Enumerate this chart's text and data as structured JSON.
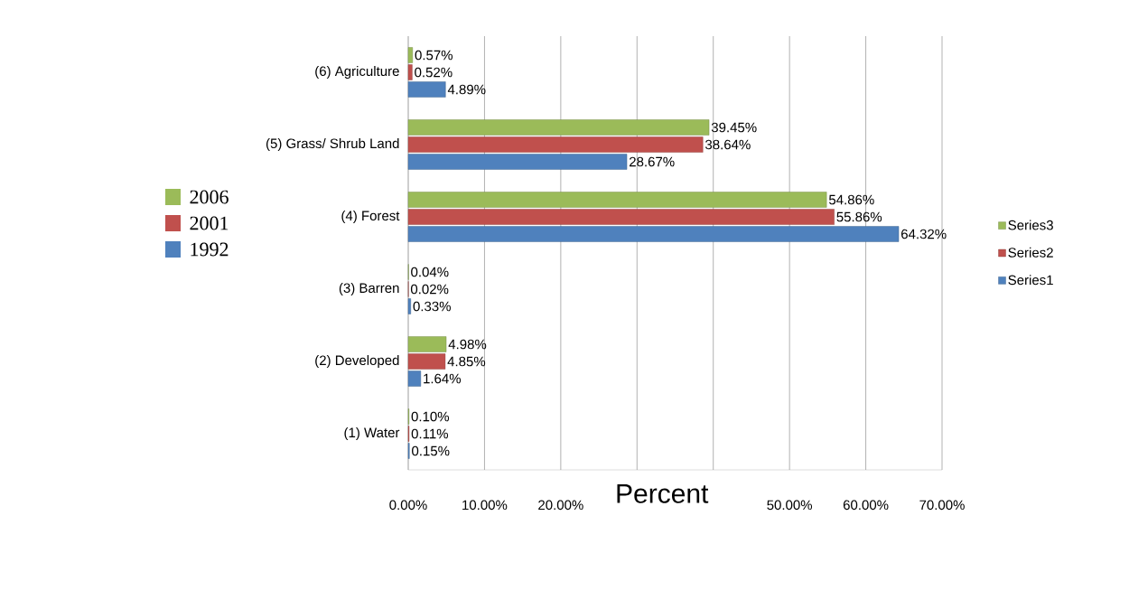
{
  "chart_data": {
    "type": "bar",
    "orientation": "horizontal",
    "xlabel": "Percent",
    "categories": [
      "(6) Agriculture",
      "(5) Grass/ Shrub Land",
      "(4) Forest",
      "(3) Barren",
      "(2) Developed",
      "(1) Water"
    ],
    "series": [
      {
        "name": "Series1",
        "color": "#4f81bd",
        "values": [
          4.89,
          28.67,
          64.32,
          0.33,
          1.64,
          0.15
        ],
        "value_labels": [
          "4.89%",
          "28.67%",
          "64.32%",
          "0.33%",
          "1.64%",
          "0.15%"
        ]
      },
      {
        "name": "Series2",
        "color": "#c0504d",
        "values": [
          0.52,
          38.64,
          55.86,
          0.02,
          4.85,
          0.11
        ],
        "value_labels": [
          "0.52%",
          "38.64%",
          "55.86%",
          "0.02%",
          "4.85%",
          "0.11%"
        ]
      },
      {
        "name": "Series3",
        "color": "#9bbb59",
        "values": [
          0.57,
          39.45,
          54.86,
          0.04,
          4.98,
          0.1
        ],
        "value_labels": [
          "0.57%",
          "39.45%",
          "54.86%",
          "0.04%",
          "4.98%",
          "0.10%"
        ]
      }
    ],
    "xlim": [
      0,
      70
    ],
    "xticks": [
      {
        "value": 0,
        "label": "0.00%"
      },
      {
        "value": 10,
        "label": "10.00%"
      },
      {
        "value": 20,
        "label": "20.00%"
      },
      {
        "value": 30,
        "label": null
      },
      {
        "value": 40,
        "label": null
      },
      {
        "value": 50,
        "label": "50.00%"
      },
      {
        "value": 60,
        "label": "60.00%"
      },
      {
        "value": 70,
        "label": "70.00%"
      }
    ],
    "annotations": [
      "2006",
      "2001",
      "1992"
    ],
    "grid": "x",
    "legend": "right"
  }
}
